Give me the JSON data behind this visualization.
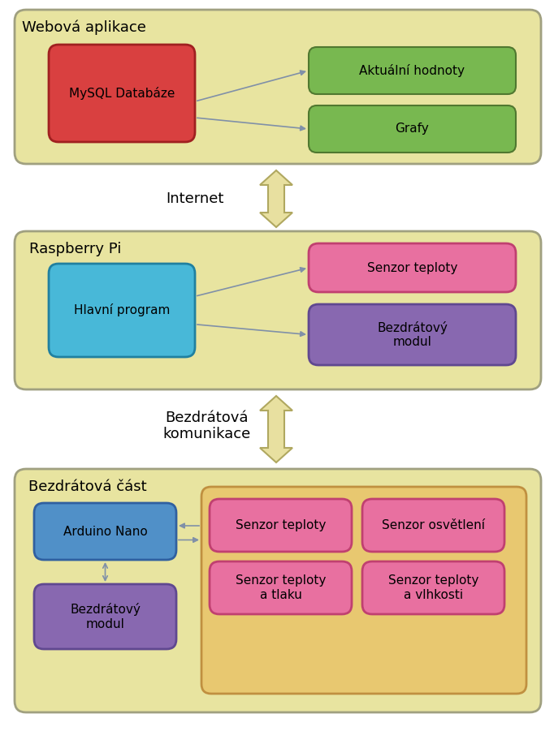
{
  "bg_color": "#FFFFFF",
  "panel_color": "#E8E4A0",
  "panel_edge_color": "#A0A080",
  "box_mysql_color": "#D94040",
  "box_mysql_edge": "#A02020",
  "box_mysql_text": "MySQL Databáze",
  "box_green_color": "#78B850",
  "box_green_edge": "#507830",
  "box_aktualni_text": "Aktuální hodnoty",
  "box_grafy_text": "Grafy",
  "box_hlavni_color": "#48B8D8",
  "box_hlavni_edge": "#2080A0",
  "box_hlavni_text": "Hlavní program",
  "box_pink_color": "#E870A0",
  "box_pink_edge": "#C04070",
  "box_senzor_teploty_text": "Senzor teploty",
  "box_purple_color": "#8868B0",
  "box_purple_edge": "#604890",
  "box_bezdr_modul_text": "Bezdrátový\nmodul",
  "box_arduino_color": "#5090C8",
  "box_arduino_edge": "#3060A0",
  "box_arduino_text": "Arduino Nano",
  "box_bezdr_modul2_text": "Bezdrátový\nmodul",
  "sensors_panel_color": "#E8C870",
  "sensors_panel_edge": "#C09040",
  "box_senzor_teploty2_text": "Senzor teploty",
  "box_senzor_osvetleni_text": "Senzor osvětlení",
  "box_senzor_tlaku_text": "Senzor teploty\na tlaku",
  "box_senzor_vlhkosti_text": "Senzor teploty\na vlhkosti",
  "arrow_color": "#8090A8",
  "arrow_head_color": "#E8E0B0",
  "arrow_outline_color": "#909070",
  "label_internet": "Internet",
  "label_bezdratova": "Bezdrátová\nkomunikace",
  "label_webova": "Webová aplikace",
  "label_raspberry": "Raspberry Pi",
  "label_bezdratova_cast": "Bezdrátová část",
  "font_size_label": 13,
  "font_size_box": 11
}
